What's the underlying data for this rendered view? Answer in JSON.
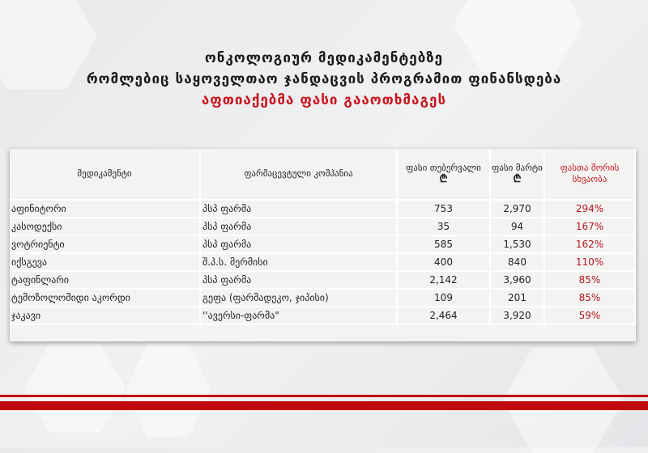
{
  "title": {
    "line1": "ონკოლოგიურ მედიკამენტებზე",
    "line2": "რომლებიც საყოველთაო ჯანდაცვის პროგრამით ფინანსდება",
    "line3": "აფთიაქებმა ფასი გააოთხმაგეს"
  },
  "colors": {
    "accent": "#c8141b",
    "table_bg": "#f3f4f2"
  },
  "table": {
    "headers": {
      "medicine": "მედიკამენტი",
      "company": "ფარმაცევტული კომპანია",
      "price_feb": "ფასი თებერვალი",
      "price_mar": "ფასი მარტი",
      "currency": "₾",
      "difference": "ფასთა შორის სხვაობა"
    },
    "rows": [
      {
        "medicine": "აფინიტორი",
        "company": "პსპ ფარმა",
        "feb": "753",
        "mar": "2,970",
        "diff": "294%"
      },
      {
        "medicine": "კასოდექსი",
        "company": "პსპ ფარმა",
        "feb": "35",
        "mar": "94",
        "diff": "167%"
      },
      {
        "medicine": "ვოტრიენტი",
        "company": "პსპ ფარმა",
        "feb": "585",
        "mar": "1,530",
        "diff": "162%"
      },
      {
        "medicine": "იქსგევა",
        "company": "შ.პ.ს. მერმისი",
        "feb": "400",
        "mar": "840",
        "diff": "110%"
      },
      {
        "medicine": "ტაფინლარი",
        "company": "პსპ ფარმა",
        "feb": "2,142",
        "mar": "3,960",
        "diff": "85%"
      },
      {
        "medicine": "ტემოზოლომიდი აკორდი",
        "company": "გეფა (ფარმადეკო, ჯიპისი)",
        "feb": "109",
        "mar": "201",
        "diff": "85%"
      },
      {
        "medicine": "ჯაკავი",
        "company": "''ავერსი-ფარმა\"",
        "feb": "2,464",
        "mar": "3,920",
        "diff": "59%"
      }
    ]
  }
}
